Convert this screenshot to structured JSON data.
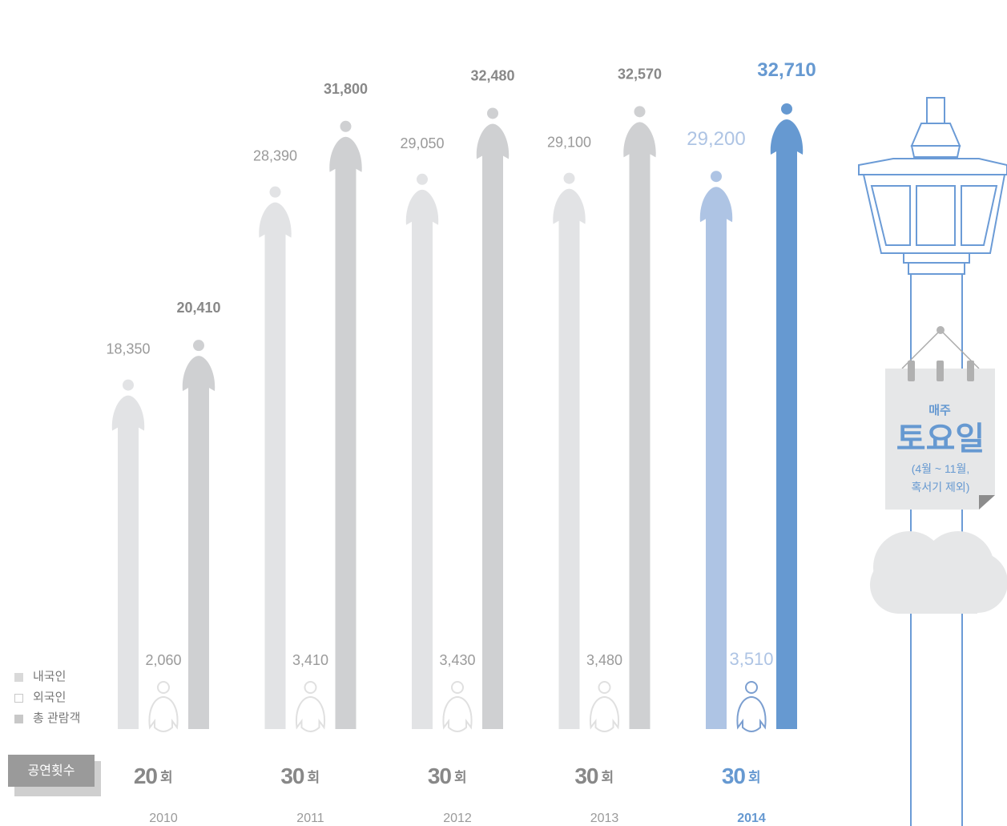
{
  "chart_data": {
    "type": "bar",
    "categories": [
      "2010",
      "2011",
      "2012",
      "2013",
      "2014"
    ],
    "series": [
      {
        "name": "내국인",
        "values": [
          18350,
          28390,
          29050,
          29100,
          29200
        ]
      },
      {
        "name": "외국인",
        "values": [
          2060,
          3410,
          3430,
          3480,
          3510
        ]
      },
      {
        "name": "총 관람객",
        "values": [
          20410,
          31800,
          32480,
          32570,
          32710
        ]
      }
    ],
    "value_labels": {
      "domestic": [
        "18,350",
        "28,390",
        "29,050",
        "29,100",
        "29,200"
      ],
      "foreign": [
        "2,060",
        "3,410",
        "3,430",
        "3,480",
        "3,510"
      ],
      "total": [
        "20,410",
        "31,800",
        "32,480",
        "32,570",
        "32,710"
      ]
    },
    "performances": [
      20,
      30,
      30,
      30,
      30
    ],
    "performance_unit": "회",
    "highlight_year": "2014",
    "colors": {
      "domestic": "#e2e3e5",
      "foreign_outline": "#e0e0e0",
      "total": "#cfd0d2",
      "domestic_highlight": "#aec4e4",
      "foreign_highlight": "#7c9fd0",
      "total_highlight": "#6699d1",
      "label_gray": "#9a9a9a",
      "label_bold_gray": "#888888",
      "label_highlight": "#6699d1"
    }
  },
  "legend": {
    "items": [
      {
        "label": "내국인",
        "style": "filled-gray"
      },
      {
        "label": "외국인",
        "style": "outline"
      },
      {
        "label": "총 관람객",
        "style": "filled-gray"
      }
    ]
  },
  "badge": {
    "label": "공연횟수"
  },
  "sign": {
    "line1": "매주",
    "line2": "토요일",
    "line3": "(4월 ~ 11월,",
    "line4": "혹서기 제외)"
  }
}
